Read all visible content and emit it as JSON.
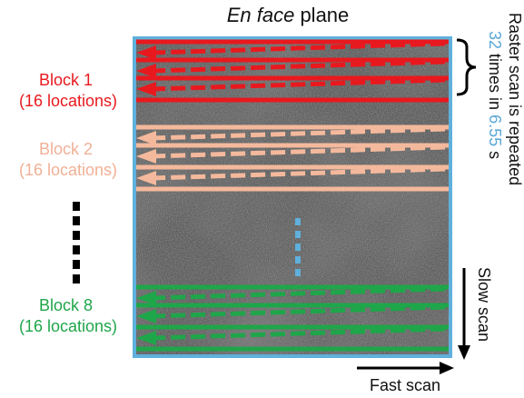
{
  "title": {
    "italic": "En face",
    "rest": " plane"
  },
  "blocks": [
    {
      "name": "Block 1",
      "detail": "(16 locations)",
      "color": "#e8191e"
    },
    {
      "name": "Block 2",
      "detail": "(16 locations)",
      "color": "#f4b99c"
    },
    {
      "name": "Block 8",
      "detail": "(16 locations)",
      "color": "#1fa64a"
    }
  ],
  "repeat_note": {
    "line1": "Raster scan is repeated",
    "count": "32",
    "mid": " times in ",
    "duration": "6.55",
    "unit": " s",
    "number_color": "#5aa7d6"
  },
  "axes": {
    "slow": "Slow scan",
    "fast": "Fast scan"
  },
  "colors": {
    "frame": "#5fb0dc",
    "background_image": "#5a5a5a",
    "dotted_connector": "#5fb0dc"
  }
}
